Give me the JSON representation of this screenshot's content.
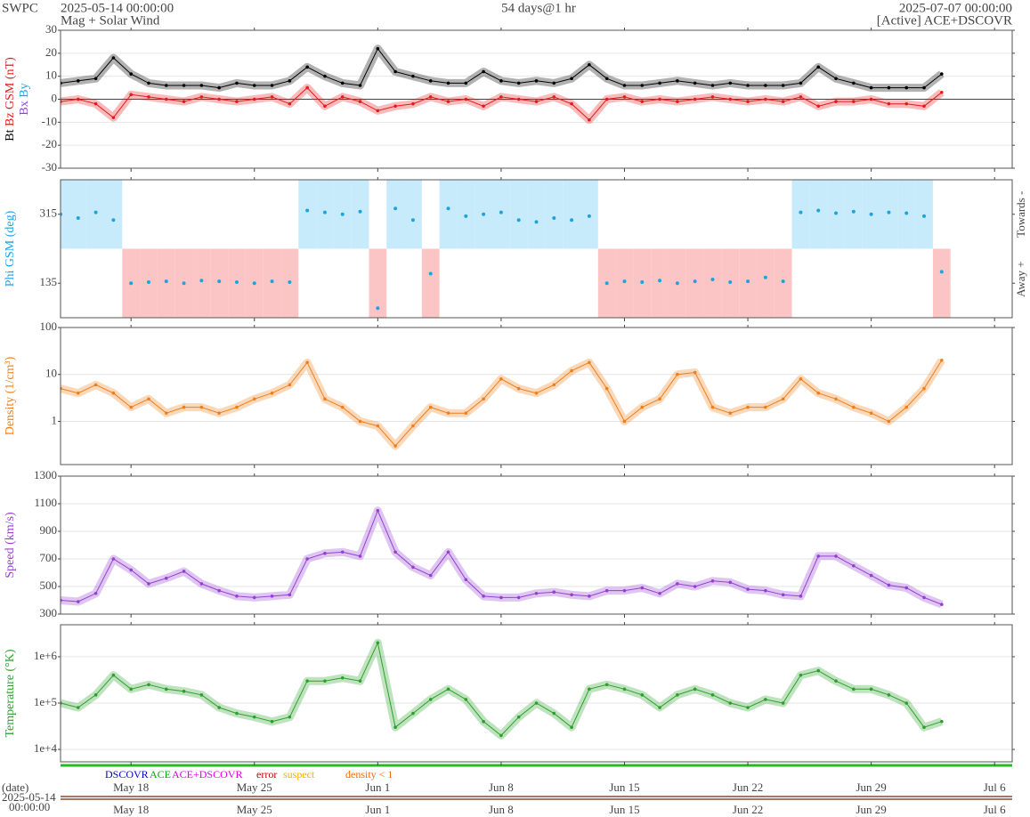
{
  "header": {
    "org": "SWPC",
    "start": "2025-05-14 00:00:00",
    "subtitle": "Mag + Solar Wind",
    "span": "54 days@1 hr",
    "end": "2025-07-07 00:00:00",
    "source": "[Active] ACE+DSCOVR"
  },
  "footer": {
    "date_title": "(date)",
    "start_date": "2025-05-14",
    "start_time": "00:00:00",
    "source_legend": [
      {
        "name": "DSCOVR",
        "color": "#0000cc"
      },
      {
        "name": "ACE",
        "color": "#00aa00"
      },
      {
        "name": "ACE+DSCOVR",
        "color": "#dd00dd"
      },
      {
        "name": "error",
        "color": "#cc0000"
      },
      {
        "name": "suspect",
        "color": "#ffaa00"
      },
      {
        "name": "density < 1",
        "color": "#ff6600"
      }
    ]
  },
  "chart_data": {
    "type": "panels",
    "x": [
      "2025-05-14",
      "2025-05-15",
      "2025-05-16",
      "2025-05-17",
      "2025-05-18",
      "2025-05-19",
      "2025-05-20",
      "2025-05-21",
      "2025-05-22",
      "2025-05-23",
      "2025-05-24",
      "2025-05-25",
      "2025-05-26",
      "2025-05-27",
      "2025-05-28",
      "2025-05-29",
      "2025-05-30",
      "2025-05-31",
      "2025-06-01",
      "2025-06-02",
      "2025-06-03",
      "2025-06-04",
      "2025-06-05",
      "2025-06-06",
      "2025-06-07",
      "2025-06-08",
      "2025-06-09",
      "2025-06-10",
      "2025-06-11",
      "2025-06-12",
      "2025-06-13",
      "2025-06-14",
      "2025-06-15",
      "2025-06-16",
      "2025-06-17",
      "2025-06-18",
      "2025-06-19",
      "2025-06-20",
      "2025-06-21",
      "2025-06-22",
      "2025-06-23",
      "2025-06-24",
      "2025-06-25",
      "2025-06-26",
      "2025-06-27",
      "2025-06-28",
      "2025-06-29",
      "2025-06-30",
      "2025-07-01",
      "2025-07-02",
      "2025-07-03"
    ],
    "xlim": [
      "2025-05-14",
      "2025-07-07"
    ],
    "xticks": [
      {
        "value": "2025-05-18",
        "label": "May 18"
      },
      {
        "value": "2025-05-25",
        "label": "May 25"
      },
      {
        "value": "2025-06-01",
        "label": "Jun 1"
      },
      {
        "value": "2025-06-08",
        "label": "Jun 8"
      },
      {
        "value": "2025-06-15",
        "label": "Jun 15"
      },
      {
        "value": "2025-06-22",
        "label": "Jun 22"
      },
      {
        "value": "2025-06-29",
        "label": "Jun 29"
      },
      {
        "value": "2025-07-06",
        "label": "Jul 6"
      }
    ],
    "panels": [
      {
        "type": "line",
        "grid": true,
        "ylim": [
          -30,
          30
        ],
        "yticks": [
          -30,
          -20,
          -10,
          0,
          10,
          20,
          30
        ],
        "ylabels": [
          [
            {
              "text": "Bt",
              "color": "#000000"
            },
            {
              "text": "Bz GSM (nT)",
              "color": "#e8191a"
            }
          ],
          [
            {
              "text": "Bx",
              "color": "#9440d0"
            },
            {
              "text": "By",
              "color": "#1ca3e0"
            }
          ]
        ],
        "series": [
          {
            "name": "Bt",
            "color": "#000000",
            "values": [
              7,
              8,
              9,
              18,
              11,
              7,
              6,
              6,
              6,
              5,
              7,
              6,
              6,
              8,
              14,
              10,
              7,
              6,
              22,
              12,
              10,
              8,
              7,
              7,
              12,
              8,
              7,
              8,
              7,
              9,
              15,
              9,
              6,
              6,
              7,
              8,
              7,
              6,
              7,
              6,
              6,
              6,
              7,
              14,
              9,
              7,
              5,
              5,
              5,
              5,
              11
            ]
          },
          {
            "name": "Bz",
            "color": "#e8191a",
            "values": [
              -1,
              0,
              -2,
              -8,
              2,
              1,
              0,
              -1,
              1,
              0,
              -1,
              0,
              1,
              -2,
              5,
              -3,
              1,
              -1,
              -5,
              -3,
              -2,
              1,
              -1,
              0,
              -3,
              1,
              0,
              -1,
              1,
              -2,
              -9,
              0,
              1,
              -1,
              0,
              -1,
              0,
              1,
              0,
              -1,
              0,
              -1,
              1,
              -3,
              -1,
              -1,
              0,
              -2,
              -2,
              -3,
              3
            ]
          }
        ]
      },
      {
        "type": "scatter",
        "grid": false,
        "ylim": [
          45,
          405
        ],
        "yticks": [
          135,
          315
        ],
        "toward_color": "#c8ebfb",
        "away_color": "#fcc5c5",
        "ylabels": [
          [
            {
              "text": "Phi GSM (deg)",
              "color": "#1ca3e0"
            }
          ]
        ],
        "right_labels": [
          "Towards -",
          "Away +"
        ],
        "series": [
          {
            "name": "Phi",
            "color": "#1ca3e0",
            "values": [
              315,
              305,
              320,
              300,
              135,
              138,
              140,
              135,
              142,
              140,
              138,
              135,
              140,
              138,
              325,
              320,
              315,
              322,
              70,
              330,
              300,
              160,
              330,
              310,
              315,
              320,
              300,
              295,
              305,
              300,
              310,
              135,
              140,
              138,
              142,
              135,
              140,
              145,
              138,
              140,
              150,
              140,
              320,
              325,
              318,
              322,
              315,
              320,
              318,
              310,
              165
            ]
          }
        ]
      },
      {
        "type": "line",
        "grid": true,
        "log": true,
        "ylim": [
          0.12,
          100
        ],
        "yticks": [
          1,
          10,
          100
        ],
        "ylabels": [
          [
            {
              "text": "Density (1/cm³)",
              "color": "#f07f1a"
            }
          ]
        ],
        "series": [
          {
            "name": "Density",
            "color": "#f07f1a",
            "values": [
              5,
              4,
              6,
              4,
              2,
              3,
              1.5,
              2,
              2,
              1.5,
              2,
              3,
              4,
              6,
              18,
              3,
              2,
              1,
              0.8,
              0.3,
              0.8,
              2,
              1.5,
              1.5,
              3,
              8,
              5,
              4,
              6,
              12,
              18,
              5,
              1,
              2,
              3,
              10,
              11,
              2,
              1.5,
              2,
              2,
              3,
              8,
              4,
              3,
              2,
              1.5,
              1,
              2,
              5,
              20
            ]
          }
        ]
      },
      {
        "type": "line",
        "grid": true,
        "ylim": [
          300,
          1300
        ],
        "yticks": [
          300,
          500,
          700,
          900,
          1100,
          1300
        ],
        "ylabels": [
          [
            {
              "text": "Speed (km/s)",
              "color": "#9440d0"
            }
          ]
        ],
        "series": [
          {
            "name": "Speed",
            "color": "#9440d0",
            "values": [
              400,
              390,
              450,
              700,
              620,
              520,
              560,
              610,
              520,
              470,
              430,
              420,
              430,
              440,
              700,
              740,
              750,
              720,
              1050,
              750,
              640,
              580,
              750,
              550,
              430,
              420,
              420,
              450,
              460,
              440,
              430,
              470,
              470,
              490,
              450,
              520,
              500,
              540,
              530,
              480,
              470,
              440,
              430,
              720,
              720,
              650,
              580,
              510,
              490,
              420,
              370
            ]
          }
        ]
      },
      {
        "type": "line",
        "grid": true,
        "log": true,
        "ylim": [
          5400,
          4900000
        ],
        "yticks": [
          {
            "value": 10000,
            "label": "1e+4"
          },
          {
            "value": 100000,
            "label": "1e+5"
          },
          {
            "value": 1000000,
            "label": "1e+6"
          }
        ],
        "ylabels": [
          [
            {
              "text": "Temperature (°K)",
              "color": "#2ca02c"
            }
          ]
        ],
        "series": [
          {
            "name": "Temperature",
            "color": "#2ca02c",
            "values": [
              100000,
              80000,
              150000,
              400000,
              200000,
              250000,
              200000,
              180000,
              150000,
              80000,
              60000,
              50000,
              40000,
              50000,
              300000,
              300000,
              350000,
              300000,
              2000000,
              30000,
              60000,
              120000,
              200000,
              120000,
              40000,
              20000,
              50000,
              100000,
              60000,
              30000,
              200000,
              250000,
              200000,
              150000,
              80000,
              150000,
              200000,
              150000,
              100000,
              80000,
              120000,
              100000,
              400000,
              500000,
              300000,
              200000,
              200000,
              150000,
              100000,
              30000,
              40000
            ]
          }
        ]
      }
    ]
  }
}
